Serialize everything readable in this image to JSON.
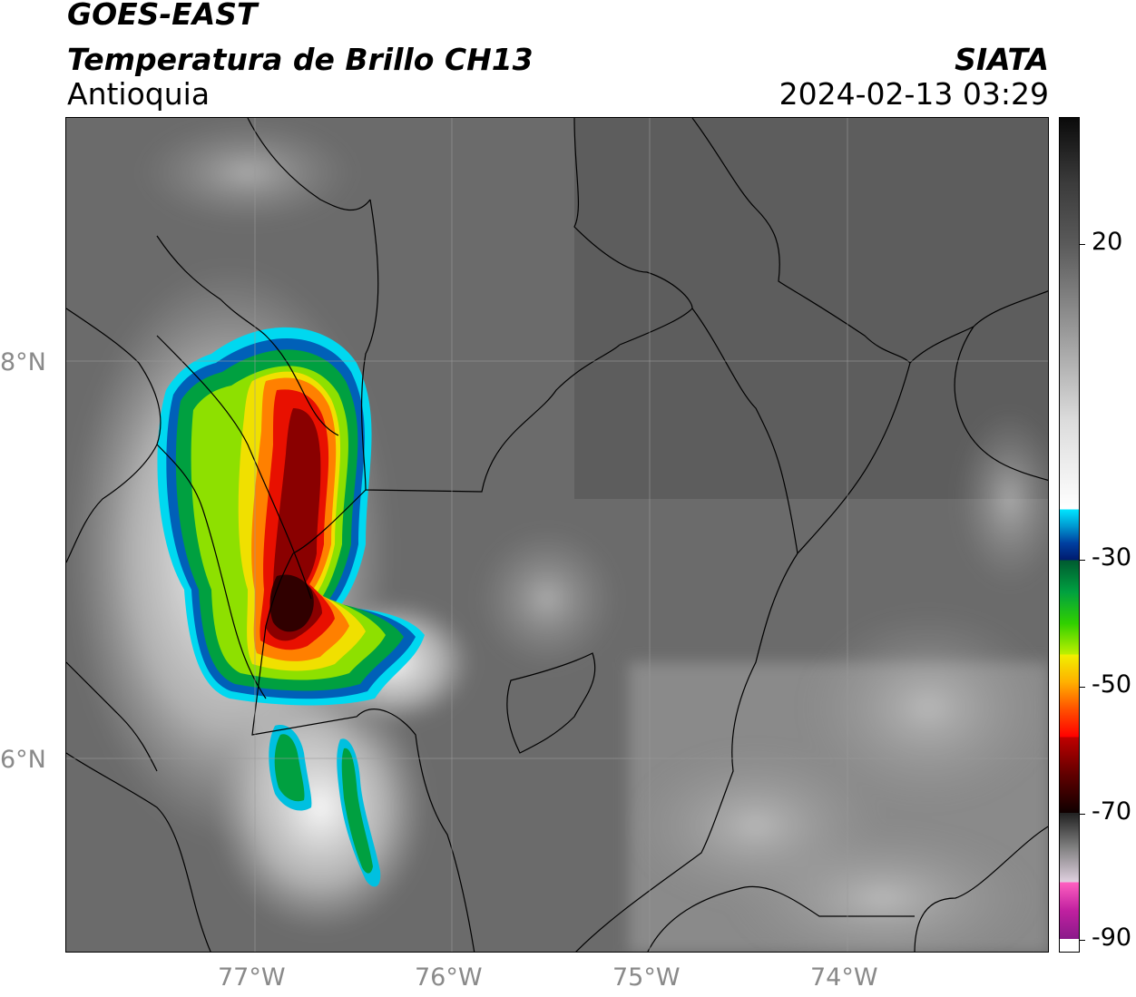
{
  "header": {
    "satellite": "GOES-EAST",
    "product": "Temperatura de Brillo CH13",
    "region": "Antioquia",
    "agency": "SIATA",
    "datetime": "2024-02-13 03:29"
  },
  "map": {
    "lat_labels": [
      "8°N",
      "6°N"
    ],
    "lon_labels": [
      "77°W",
      "76°W",
      "75°W",
      "74°W"
    ],
    "extent": {
      "lon_min": -77.95,
      "lon_max": -73.0,
      "lat_min": 4.95,
      "lat_max": 9.15
    },
    "gridlines": true,
    "background_color": "#6e6e6e"
  },
  "colorbar": {
    "tick_labels": [
      "20",
      "-30",
      "-50",
      "-70",
      "-90"
    ],
    "tick_values": [
      20,
      -30,
      -50,
      -70,
      -90
    ],
    "range": [
      -92,
      40
    ],
    "segments": [
      {
        "from": 40,
        "to": 20,
        "colors": [
          "#0a0a0a",
          "#3a3a3a",
          "#5a5a5a"
        ]
      },
      {
        "from": 20,
        "to": -22,
        "colors": [
          "#5a5a5a",
          "#9a9a9a",
          "#dcdcdc",
          "#ffffff"
        ]
      },
      {
        "from": -22,
        "to": -30,
        "colors": [
          "#00e5ff",
          "#0098d0",
          "#0040a0",
          "#001a6e"
        ]
      },
      {
        "from": -30,
        "to": -45,
        "colors": [
          "#005a30",
          "#00a040",
          "#30d000",
          "#c0f000"
        ]
      },
      {
        "from": -45,
        "to": -58,
        "colors": [
          "#f0f000",
          "#ffb000",
          "#ff5000",
          "#ff0000"
        ]
      },
      {
        "from": -58,
        "to": -70,
        "colors": [
          "#c00000",
          "#600000",
          "#100000"
        ]
      },
      {
        "from": -70,
        "to": -81,
        "colors": [
          "#202020",
          "#808080",
          "#e0d0e0"
        ]
      },
      {
        "from": -81,
        "to": -90,
        "colors": [
          "#ff60c0",
          "#c020a0",
          "#8a1a8a"
        ]
      },
      {
        "from": -90,
        "to": -92,
        "colors": [
          "#ffffff",
          "#ffffff"
        ]
      }
    ]
  }
}
